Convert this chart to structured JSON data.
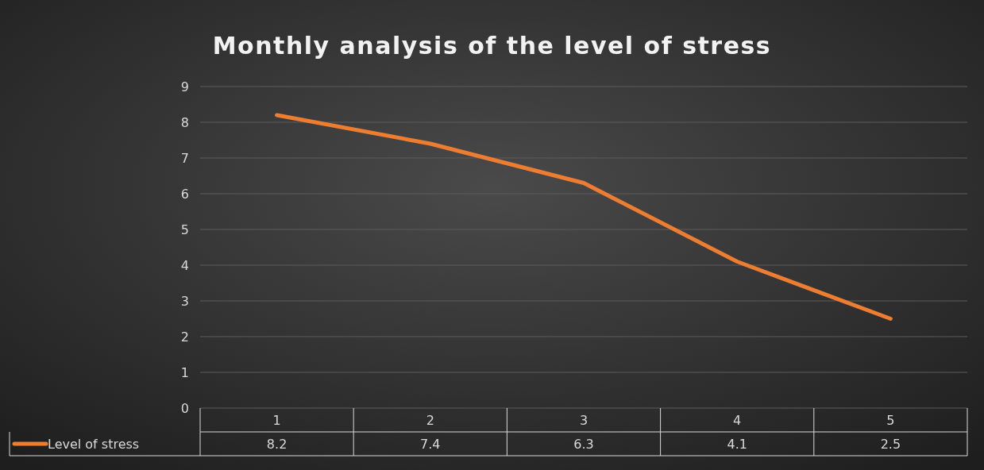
{
  "chart_data": {
    "type": "line",
    "title": "Monthly analysis of the level of stress",
    "categories": [
      "1",
      "2",
      "3",
      "4",
      "5"
    ],
    "series": [
      {
        "name": "Level of stress",
        "color": "#ed7d31",
        "values": [
          8.2,
          7.4,
          6.3,
          4.1,
          2.5
        ]
      }
    ],
    "ylim": [
      0,
      9
    ],
    "yticks": [
      0,
      1,
      2,
      3,
      4,
      5,
      6,
      7,
      8,
      9
    ],
    "grid": "y",
    "legend": "bottom",
    "data_labels": true,
    "marker": "none",
    "line_style": "solid"
  }
}
